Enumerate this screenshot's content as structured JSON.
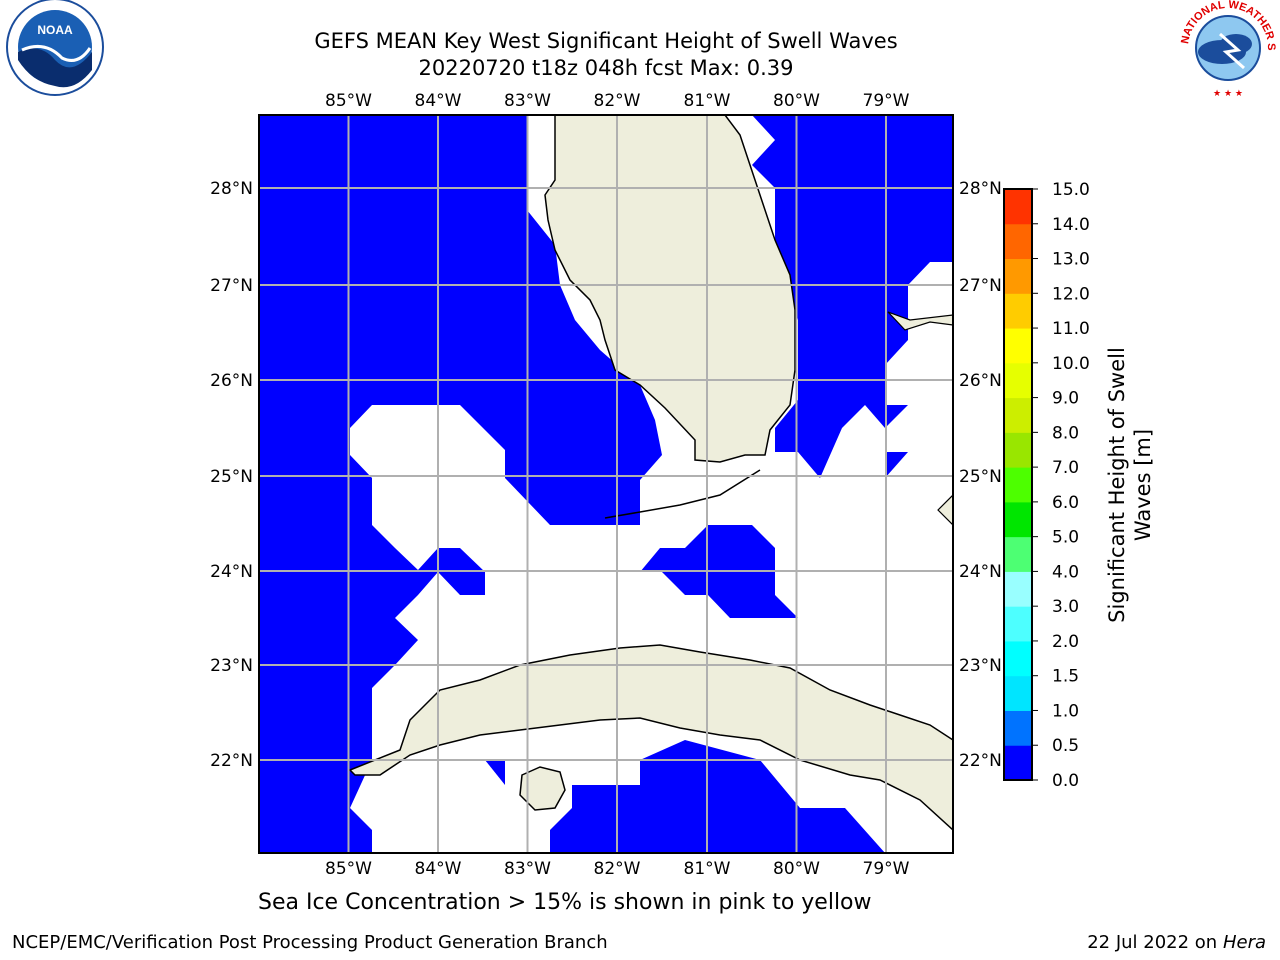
{
  "title": {
    "line1": "GEFS MEAN Key West Significant Height of Swell Waves",
    "line2": "20220720 t18z 048h fcst   Max: 0.39"
  },
  "logos": {
    "left": "NOAA",
    "right": "NATIONAL WEATHER SERVICE"
  },
  "map": {
    "lon_ticks": [
      "85°W",
      "84°W",
      "83°W",
      "82°W",
      "81°W",
      "80°W",
      "79°W"
    ],
    "lat_ticks": [
      "28°N",
      "27°N",
      "26°N",
      "25°N",
      "24°N",
      "23°N",
      "22°N"
    ],
    "extent": {
      "lon_min": -86.0,
      "lon_max": -78.25,
      "lat_min": 21.0,
      "lat_max": 28.8
    },
    "colors": {
      "ocean": "#0000ff",
      "land": "#eeeedc",
      "nodata": "#ffffff",
      "grid": "#b0b0b0"
    }
  },
  "colorbar": {
    "label": "Significant Height of Swell Waves [m]",
    "ticks": [
      "0.0",
      "0.5",
      "1.0",
      "1.5",
      "2.0",
      "3.0",
      "4.0",
      "5.0",
      "6.0",
      "7.0",
      "8.0",
      "9.0",
      "10.0",
      "11.0",
      "12.0",
      "13.0",
      "14.0",
      "15.0"
    ],
    "colors": [
      "#0000ff",
      "#0073ff",
      "#00e5ff",
      "#00ffff",
      "#4dffff",
      "#99ffff",
      "#4dff73",
      "#00e600",
      "#4dff00",
      "#99e600",
      "#ccee00",
      "#e6ff00",
      "#ffff00",
      "#ffcc00",
      "#ff9900",
      "#ff6600",
      "#ff3300",
      "#ff0000"
    ]
  },
  "note": "Sea Ice Concentration > 15% is shown in pink to yellow",
  "footer": {
    "left": "NCEP/EMC/Verification Post Processing Product Generation Branch",
    "right_prefix": "22 Jul 2022 on ",
    "right_host": "Hera"
  }
}
